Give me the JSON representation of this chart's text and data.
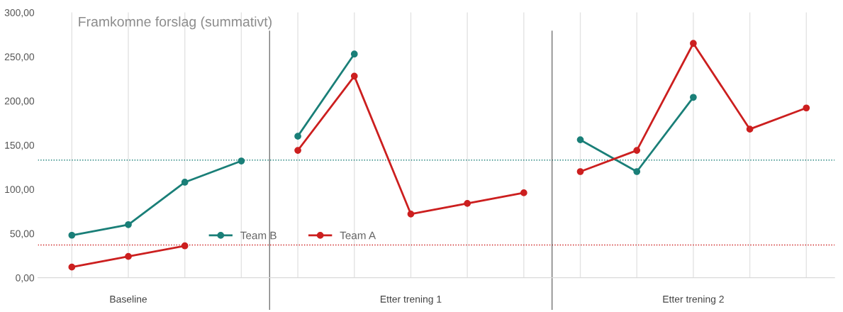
{
  "chart_data": {
    "type": "line",
    "title": "Framkomne forslag (summativt)",
    "categories": [
      null,
      "Baseline",
      null,
      null,
      null,
      null,
      "Etter trening 1",
      null,
      null,
      null,
      null,
      "Etter trening 2",
      null,
      null
    ],
    "series": [
      {
        "name": "Team B",
        "color": "#1a7f78",
        "values": [
          48,
          60,
          108,
          132,
          160,
          253,
          null,
          null,
          null,
          156,
          120,
          204,
          null,
          null
        ]
      },
      {
        "name": "Team A",
        "color": "#cc1f1f",
        "values": [
          12,
          24,
          36,
          null,
          144,
          228,
          72,
          84,
          96,
          120,
          144,
          265,
          168,
          192
        ]
      }
    ],
    "ylim": [
      0,
      300
    ],
    "yticks": [
      {
        "value": 0,
        "label": "0,00"
      },
      {
        "value": 50,
        "label": "50,00"
      },
      {
        "value": 100,
        "label": "100,00"
      },
      {
        "value": 150,
        "label": "150,00"
      },
      {
        "value": 200,
        "label": "200,00"
      },
      {
        "value": 250,
        "label": "250,00"
      },
      {
        "value": 300,
        "label": "300,00"
      }
    ],
    "ref_lines": [
      {
        "axis": "y",
        "value": 133,
        "color": "#1a7f78",
        "line_style": "dotted"
      },
      {
        "axis": "y",
        "value": 37,
        "color": "#cc1f1f",
        "line_style": "dotted"
      }
    ],
    "grid": "x",
    "legend": "bottom",
    "marker": "circle",
    "line_style": "solid"
  }
}
